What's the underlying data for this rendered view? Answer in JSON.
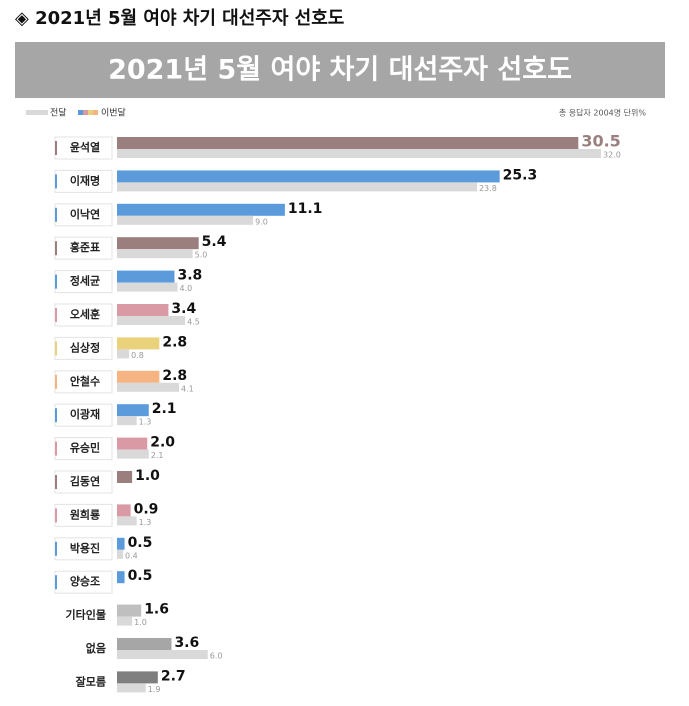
{
  "chart_data": {
    "type": "bar",
    "heading": "◈ 2021년 5월 여야 차기 대선주자 선호도",
    "title": "2021년 5월 여야 차기 대선주자 선호도",
    "note": "총 응답자 2004명  단위%",
    "categories": [
      "윤석열",
      "이재명",
      "이낙연",
      "홍준표",
      "정세균",
      "오세훈",
      "심상정",
      "안철수",
      "이광재",
      "유승민",
      "김동연",
      "원희룡",
      "박용진",
      "양승조",
      "기타인물",
      "없음",
      "잘모름"
    ],
    "xlim": [
      0,
      32
    ],
    "series": [
      {
        "name": "이번달",
        "colors": [
          "#9b7f7f",
          "#5b9bdc",
          "#5b9bdc",
          "#9b7f7f",
          "#5b9bdc",
          "#d99aa5",
          "#ead27c",
          "#f5b482",
          "#5b9bdc",
          "#d99aa5",
          "#9b7f7f",
          "#d99aa5",
          "#5b9bdc",
          "#5b9bdc",
          "#bfbfbf",
          "#a6a6a6",
          "#7f7f7f"
        ],
        "values": [
          30.5,
          25.3,
          11.1,
          5.4,
          3.8,
          3.4,
          2.8,
          2.8,
          2.1,
          2.0,
          1.0,
          0.9,
          0.5,
          0.5,
          1.6,
          3.6,
          2.7
        ],
        "value_labels": [
          "30.5",
          "25.3",
          "11.1",
          "5.4",
          "3.8",
          "3.4",
          "2.8",
          "2.8",
          "2.1",
          "2.0",
          "1.0",
          "0.9",
          "0.5",
          "0.5",
          "1.6",
          "3.6",
          "2.7"
        ]
      },
      {
        "name": "전달",
        "color": "#d9d9d9",
        "values": [
          32.0,
          23.8,
          9.0,
          5.0,
          4.0,
          4.5,
          0.8,
          4.1,
          1.3,
          2.1,
          null,
          1.3,
          0.4,
          null,
          1.0,
          6.0,
          1.9
        ],
        "value_labels": [
          "32.0",
          "23.8",
          "9.0",
          "5.0",
          "4.0",
          "4.5",
          "0.8",
          "4.1",
          "1.3",
          "2.1",
          null,
          "1.3",
          "0.4",
          null,
          "1.0",
          "6.0",
          "1.9"
        ]
      }
    ]
  }
}
